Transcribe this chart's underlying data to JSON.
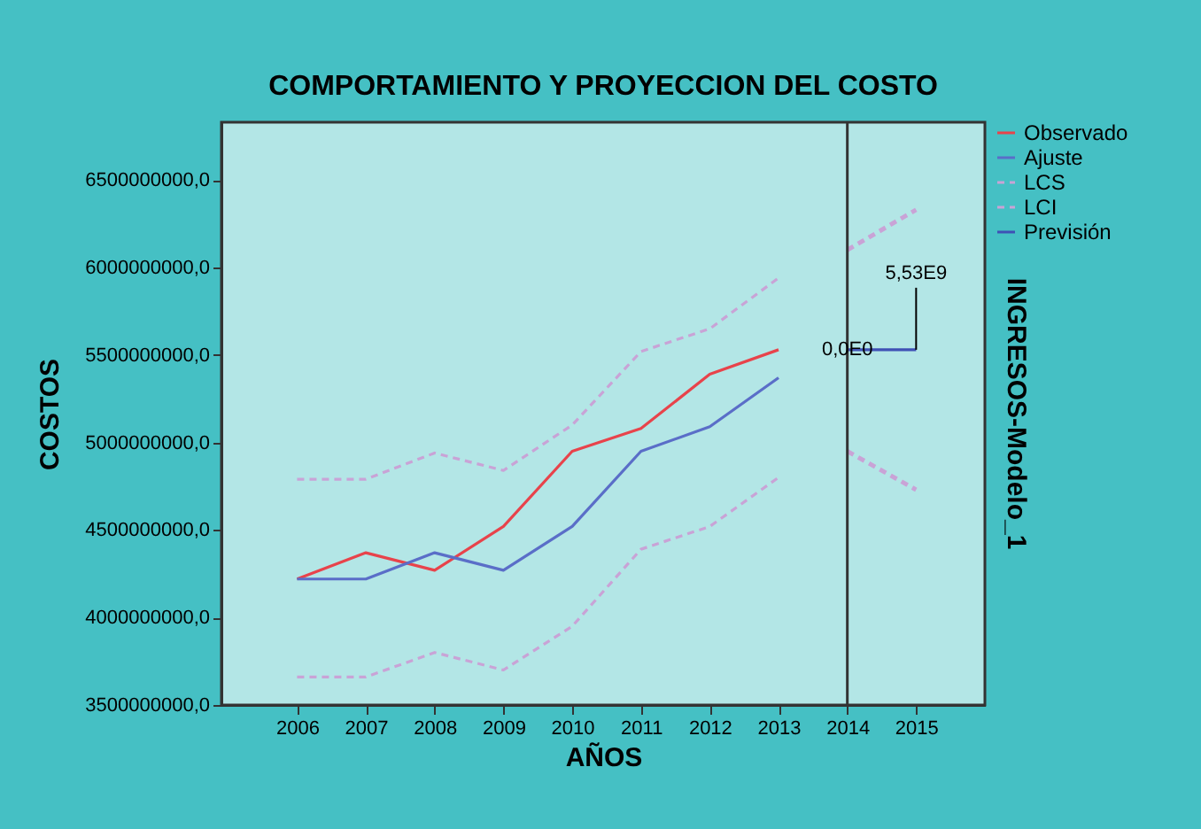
{
  "chart_data": {
    "type": "line",
    "title": "COMPORTAMIENTO Y PROYECCION DEL COSTO",
    "xlabel": "AÑOS",
    "ylabel": "COSTOS",
    "y2label": "INGRESOS-Modelo_1",
    "xlim": [
      2004.9,
      2016.0
    ],
    "xticks": [
      2006,
      2007,
      2008,
      2009,
      2010,
      2011,
      2012,
      2013,
      2014,
      2015
    ],
    "ylim": [
      3500000000,
      6830000000
    ],
    "yticks": [
      {
        "value": 3500000000,
        "label": "3500000000,0"
      },
      {
        "value": 4000000000,
        "label": "4000000000,0"
      },
      {
        "value": 4500000000,
        "label": "4500000000,0"
      },
      {
        "value": 5000000000,
        "label": "5000000000,0"
      },
      {
        "value": 5500000000,
        "label": "5500000000,0"
      },
      {
        "value": 6000000000,
        "label": "6000000000,0"
      },
      {
        "value": 6500000000,
        "label": "6500000000,0"
      }
    ],
    "grid": false,
    "legend": "top right",
    "marker": "none",
    "series": [
      {
        "name": "Observado",
        "color": "#e8434b",
        "line_style": "solid",
        "x": [
          2006,
          2007,
          2008,
          2009,
          2010,
          2011,
          2012,
          2013
        ],
        "values": [
          4220000000,
          4370000000,
          4270000000,
          4520000000,
          4950000000,
          5080000000,
          5390000000,
          5530000000
        ]
      },
      {
        "name": "Ajuste",
        "color": "#5a6ec8",
        "line_style": "solid",
        "x": [
          2006,
          2007,
          2008,
          2009,
          2010,
          2011,
          2012,
          2013
        ],
        "values": [
          4220000000,
          4220000000,
          4370000000,
          4270000000,
          4520000000,
          4950000000,
          5090000000,
          5370000000
        ]
      },
      {
        "name": "LCS",
        "color": "#c9a3d6",
        "line_style": "dashed",
        "x": [
          2006,
          2007,
          2008,
          2009,
          2010,
          2011,
          2012,
          2013
        ],
        "values": [
          4790000000,
          4790000000,
          4940000000,
          4840000000,
          5100000000,
          5520000000,
          5650000000,
          5940000000
        ]
      },
      {
        "name": "LCI",
        "color": "#c9a3d6",
        "line_style": "dashed",
        "x": [
          2006,
          2007,
          2008,
          2009,
          2010,
          2011,
          2012,
          2013
        ],
        "values": [
          3660000000,
          3660000000,
          3800000000,
          3700000000,
          3950000000,
          4390000000,
          4520000000,
          4800000000
        ]
      },
      {
        "name": "Previsión",
        "color": "#3f51b5",
        "line_style": "solid",
        "x": [
          2014,
          2015
        ],
        "values": [
          5530000000,
          5530000000
        ]
      },
      {
        "color": "#c9a3d6",
        "line_style": "dashed",
        "x": [
          2014,
          2015
        ],
        "values": [
          6100000000,
          6330000000
        ]
      },
      {
        "color": "#c9a3d6",
        "line_style": "dashed",
        "x": [
          2014,
          2015
        ],
        "values": [
          4950000000,
          4730000000
        ]
      }
    ],
    "ref_lines": [
      {
        "axis": "x",
        "value": 2014,
        "color": "#333333",
        "line_style": "solid"
      }
    ],
    "annotations": [
      {
        "text": "5,53E9",
        "x": 2015,
        "y": 5530000000
      },
      {
        "text": "0,0E0",
        "x": 2014,
        "y": 5530000000
      }
    ]
  }
}
